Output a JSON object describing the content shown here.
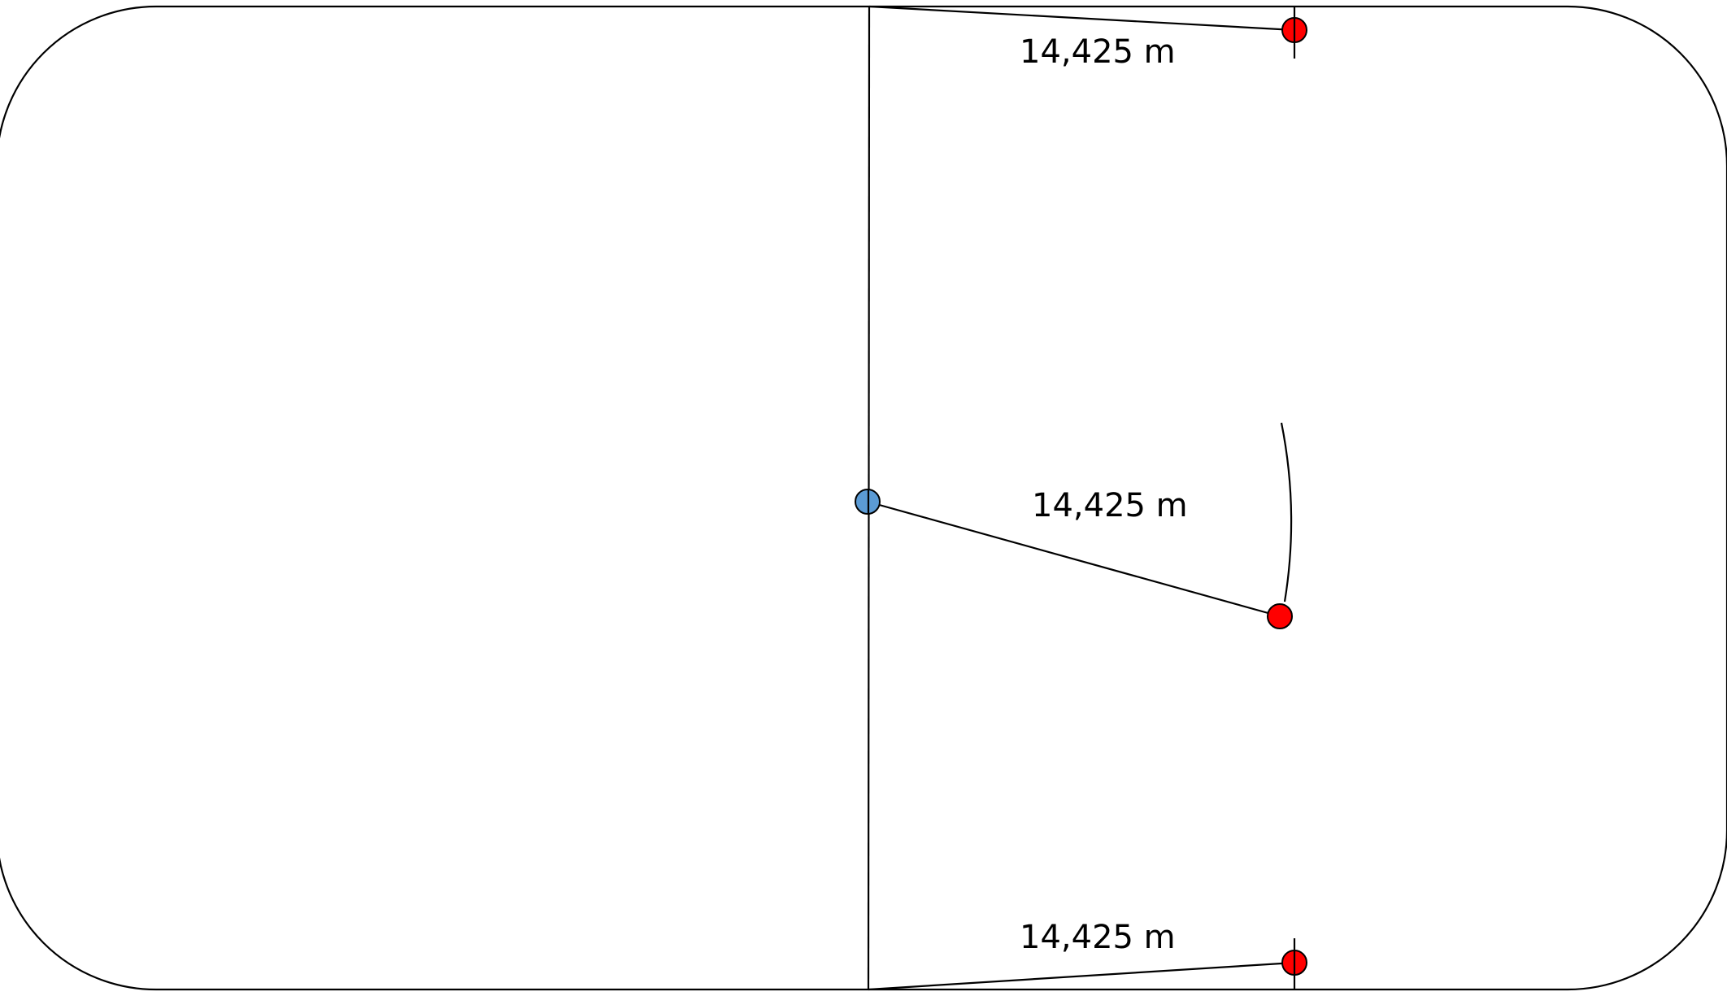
{
  "labels": {
    "top": "14,425 m",
    "middle": "14,425 m",
    "bottom": "14,425 m"
  },
  "colors": {
    "line": "#000000",
    "center_dot": "#5b9bd5",
    "end_dot": "#ff0000",
    "background": "#ffffff"
  }
}
